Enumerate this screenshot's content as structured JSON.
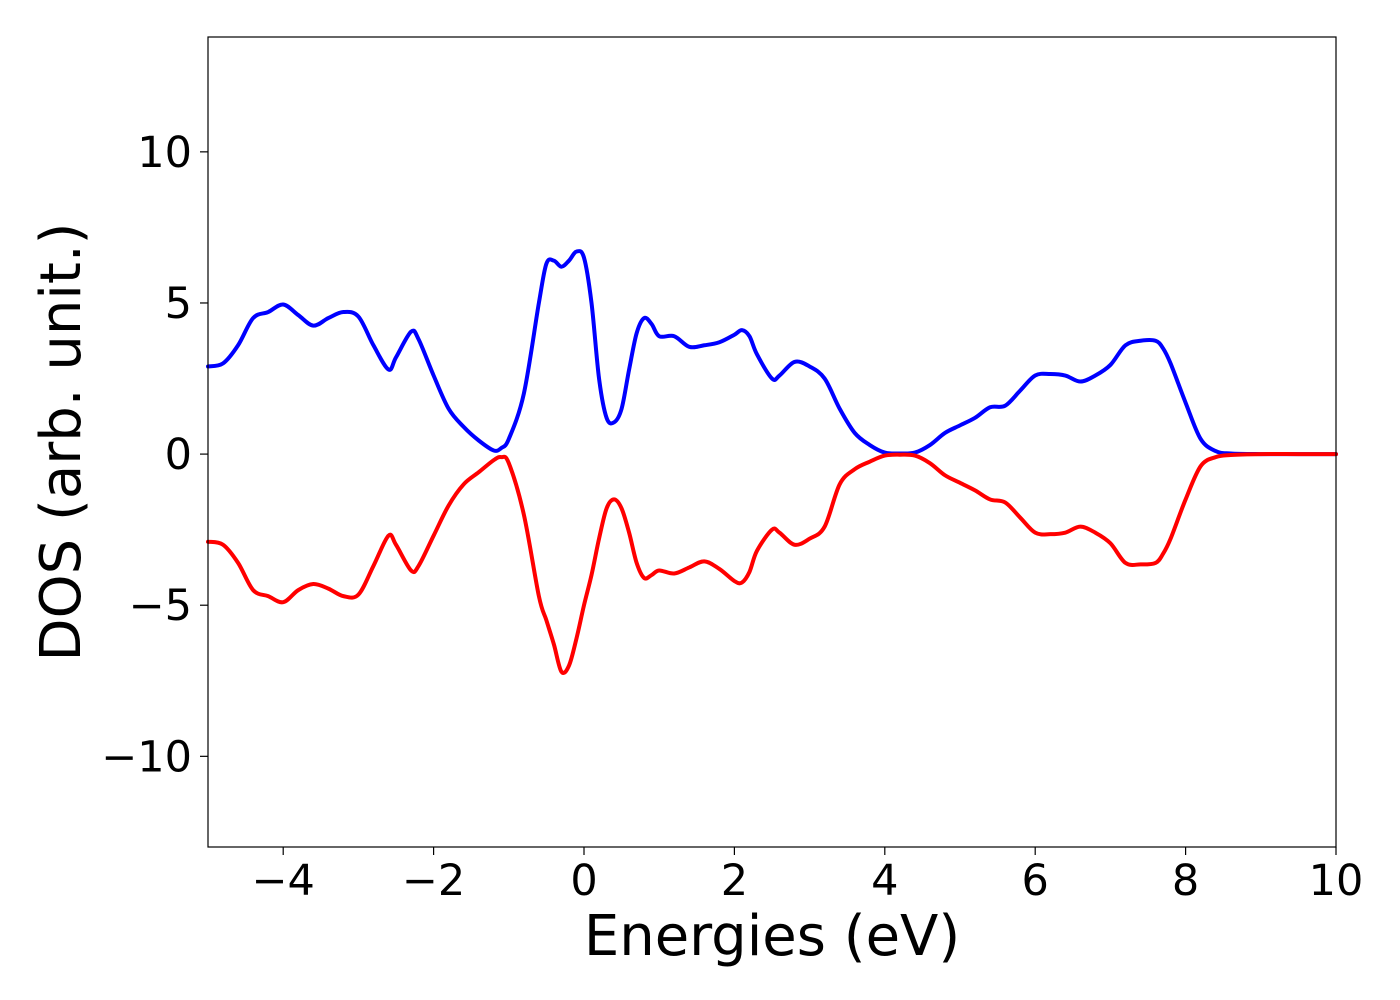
{
  "chart_data": {
    "type": "line",
    "xlabel": "Energies (eV)",
    "ylabel": "DOS (arb. unit.)",
    "xlim": [
      -5,
      10
    ],
    "ylim": [
      -13,
      13.8
    ],
    "xticks": [
      -4,
      -2,
      0,
      2,
      4,
      6,
      8,
      10
    ],
    "xtick_labels": [
      "−4",
      "−2",
      "0",
      "2",
      "4",
      "6",
      "8",
      "10"
    ],
    "yticks": [
      -10,
      -5,
      0,
      5,
      10
    ],
    "ytick_labels": [
      "−10",
      "−5",
      "0",
      "5",
      "10"
    ],
    "grid": false,
    "legend": "none",
    "series": [
      {
        "color": "#0000ff",
        "points": [
          [
            -5.0,
            2.9
          ],
          [
            -4.8,
            3.0
          ],
          [
            -4.6,
            3.6
          ],
          [
            -4.4,
            4.5
          ],
          [
            -4.2,
            4.7
          ],
          [
            -4.0,
            4.95
          ],
          [
            -3.8,
            4.6
          ],
          [
            -3.6,
            4.25
          ],
          [
            -3.4,
            4.5
          ],
          [
            -3.2,
            4.7
          ],
          [
            -3.0,
            4.55
          ],
          [
            -2.8,
            3.6
          ],
          [
            -2.6,
            2.8
          ],
          [
            -2.5,
            3.2
          ],
          [
            -2.3,
            4.05
          ],
          [
            -2.2,
            3.8
          ],
          [
            -2.0,
            2.6
          ],
          [
            -1.8,
            1.5
          ],
          [
            -1.6,
            0.9
          ],
          [
            -1.4,
            0.45
          ],
          [
            -1.2,
            0.12
          ],
          [
            -1.1,
            0.2
          ],
          [
            -1.0,
            0.5
          ],
          [
            -0.8,
            2.0
          ],
          [
            -0.6,
            5.0
          ],
          [
            -0.5,
            6.3
          ],
          [
            -0.4,
            6.4
          ],
          [
            -0.3,
            6.2
          ],
          [
            -0.2,
            6.4
          ],
          [
            -0.1,
            6.7
          ],
          [
            0.0,
            6.5
          ],
          [
            0.1,
            5.0
          ],
          [
            0.2,
            2.5
          ],
          [
            0.3,
            1.2
          ],
          [
            0.4,
            1.05
          ],
          [
            0.5,
            1.5
          ],
          [
            0.6,
            2.8
          ],
          [
            0.7,
            4.0
          ],
          [
            0.8,
            4.5
          ],
          [
            0.9,
            4.3
          ],
          [
            1.0,
            3.9
          ],
          [
            1.2,
            3.9
          ],
          [
            1.4,
            3.55
          ],
          [
            1.6,
            3.6
          ],
          [
            1.8,
            3.7
          ],
          [
            2.0,
            3.95
          ],
          [
            2.1,
            4.1
          ],
          [
            2.2,
            3.9
          ],
          [
            2.3,
            3.3
          ],
          [
            2.5,
            2.5
          ],
          [
            2.6,
            2.6
          ],
          [
            2.8,
            3.05
          ],
          [
            3.0,
            2.9
          ],
          [
            3.2,
            2.5
          ],
          [
            3.4,
            1.5
          ],
          [
            3.6,
            0.7
          ],
          [
            3.8,
            0.3
          ],
          [
            4.0,
            0.05
          ],
          [
            4.2,
            0.02
          ],
          [
            4.4,
            0.05
          ],
          [
            4.6,
            0.3
          ],
          [
            4.8,
            0.7
          ],
          [
            5.0,
            0.95
          ],
          [
            5.2,
            1.2
          ],
          [
            5.4,
            1.55
          ],
          [
            5.6,
            1.6
          ],
          [
            5.8,
            2.1
          ],
          [
            6.0,
            2.6
          ],
          [
            6.2,
            2.65
          ],
          [
            6.4,
            2.6
          ],
          [
            6.6,
            2.4
          ],
          [
            6.8,
            2.6
          ],
          [
            7.0,
            2.95
          ],
          [
            7.2,
            3.6
          ],
          [
            7.4,
            3.75
          ],
          [
            7.6,
            3.75
          ],
          [
            7.7,
            3.5
          ],
          [
            7.8,
            3.0
          ],
          [
            8.0,
            1.7
          ],
          [
            8.2,
            0.5
          ],
          [
            8.4,
            0.1
          ],
          [
            8.6,
            0.02
          ],
          [
            9.0,
            0.0
          ],
          [
            9.5,
            0.0
          ],
          [
            10.0,
            0.0
          ]
        ]
      },
      {
        "color": "#ff0000",
        "points": [
          [
            -5.0,
            -2.9
          ],
          [
            -4.8,
            -3.0
          ],
          [
            -4.6,
            -3.6
          ],
          [
            -4.4,
            -4.5
          ],
          [
            -4.2,
            -4.7
          ],
          [
            -4.0,
            -4.9
          ],
          [
            -3.8,
            -4.5
          ],
          [
            -3.6,
            -4.3
          ],
          [
            -3.4,
            -4.45
          ],
          [
            -3.2,
            -4.7
          ],
          [
            -3.0,
            -4.65
          ],
          [
            -2.8,
            -3.7
          ],
          [
            -2.6,
            -2.7
          ],
          [
            -2.5,
            -3.0
          ],
          [
            -2.3,
            -3.85
          ],
          [
            -2.2,
            -3.7
          ],
          [
            -2.0,
            -2.7
          ],
          [
            -1.8,
            -1.7
          ],
          [
            -1.6,
            -1.0
          ],
          [
            -1.4,
            -0.6
          ],
          [
            -1.2,
            -0.2
          ],
          [
            -1.1,
            -0.1
          ],
          [
            -1.0,
            -0.3
          ],
          [
            -0.8,
            -2.0
          ],
          [
            -0.6,
            -4.7
          ],
          [
            -0.5,
            -5.5
          ],
          [
            -0.4,
            -6.3
          ],
          [
            -0.3,
            -7.2
          ],
          [
            -0.2,
            -7.0
          ],
          [
            -0.1,
            -6.1
          ],
          [
            0.0,
            -5.0
          ],
          [
            0.1,
            -4.0
          ],
          [
            0.2,
            -2.8
          ],
          [
            0.3,
            -1.8
          ],
          [
            0.4,
            -1.5
          ],
          [
            0.5,
            -1.8
          ],
          [
            0.6,
            -2.6
          ],
          [
            0.7,
            -3.6
          ],
          [
            0.8,
            -4.1
          ],
          [
            0.9,
            -4.0
          ],
          [
            1.0,
            -3.85
          ],
          [
            1.2,
            -3.95
          ],
          [
            1.4,
            -3.75
          ],
          [
            1.6,
            -3.55
          ],
          [
            1.8,
            -3.8
          ],
          [
            2.0,
            -4.2
          ],
          [
            2.1,
            -4.25
          ],
          [
            2.2,
            -3.9
          ],
          [
            2.3,
            -3.2
          ],
          [
            2.5,
            -2.5
          ],
          [
            2.6,
            -2.6
          ],
          [
            2.8,
            -3.0
          ],
          [
            3.0,
            -2.8
          ],
          [
            3.2,
            -2.4
          ],
          [
            3.4,
            -1.0
          ],
          [
            3.6,
            -0.5
          ],
          [
            3.8,
            -0.25
          ],
          [
            4.0,
            -0.05
          ],
          [
            4.2,
            -0.02
          ],
          [
            4.4,
            -0.05
          ],
          [
            4.6,
            -0.3
          ],
          [
            4.8,
            -0.7
          ],
          [
            5.0,
            -0.95
          ],
          [
            5.2,
            -1.2
          ],
          [
            5.4,
            -1.5
          ],
          [
            5.6,
            -1.6
          ],
          [
            5.8,
            -2.1
          ],
          [
            6.0,
            -2.6
          ],
          [
            6.2,
            -2.65
          ],
          [
            6.4,
            -2.6
          ],
          [
            6.6,
            -2.4
          ],
          [
            6.8,
            -2.6
          ],
          [
            7.0,
            -2.95
          ],
          [
            7.2,
            -3.6
          ],
          [
            7.4,
            -3.65
          ],
          [
            7.6,
            -3.6
          ],
          [
            7.7,
            -3.3
          ],
          [
            7.8,
            -2.8
          ],
          [
            8.0,
            -1.5
          ],
          [
            8.2,
            -0.4
          ],
          [
            8.4,
            -0.1
          ],
          [
            8.6,
            -0.03
          ],
          [
            9.0,
            0.0
          ],
          [
            9.5,
            0.0
          ],
          [
            10.0,
            0.0
          ]
        ]
      }
    ]
  }
}
